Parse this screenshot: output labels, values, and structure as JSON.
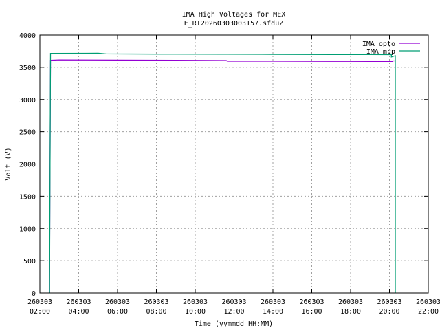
{
  "chart_data": {
    "type": "line",
    "title": "IMA High Voltages for MEX",
    "subtitle": "E_RT20260303003157.sfduZ",
    "xlabel": "Time (yymmdd HH:MM)",
    "ylabel": "Volt (V)",
    "ylim": [
      0,
      4000
    ],
    "xlim_hours": [
      2,
      22
    ],
    "y_ticks": [
      0,
      500,
      1000,
      1500,
      2000,
      2500,
      3000,
      3500,
      4000
    ],
    "x_ticks": [
      {
        "date": "260303",
        "time": "02:00"
      },
      {
        "date": "260303",
        "time": "04:00"
      },
      {
        "date": "260303",
        "time": "06:00"
      },
      {
        "date": "260303",
        "time": "08:00"
      },
      {
        "date": "260303",
        "time": "10:00"
      },
      {
        "date": "260303",
        "time": "12:00"
      },
      {
        "date": "260303",
        "time": "14:00"
      },
      {
        "date": "260303",
        "time": "16:00"
      },
      {
        "date": "260303",
        "time": "18:00"
      },
      {
        "date": "260303",
        "time": "20:00"
      },
      {
        "date": "260303",
        "time": "22:00"
      }
    ],
    "grid": true,
    "legend_position": "top-right",
    "series": [
      {
        "name": "IMA opto",
        "color": "#9400d3",
        "points": [
          [
            2.5,
            0
          ],
          [
            2.5,
            200
          ],
          [
            2.55,
            3610
          ],
          [
            3,
            3615
          ],
          [
            6,
            3612
          ],
          [
            9,
            3610
          ],
          [
            11.6,
            3605
          ],
          [
            11.65,
            3595
          ],
          [
            14,
            3595
          ],
          [
            17,
            3593
          ],
          [
            19,
            3592
          ],
          [
            20.15,
            3592
          ],
          [
            20.2,
            3600
          ],
          [
            20.3,
            3600
          ]
        ]
      },
      {
        "name": "IMA mcp",
        "color": "#009e73",
        "points": [
          [
            2.5,
            0
          ],
          [
            2.55,
            3715
          ],
          [
            5,
            3718
          ],
          [
            5.4,
            3708
          ],
          [
            8,
            3705
          ],
          [
            11.5,
            3703
          ],
          [
            14,
            3700
          ],
          [
            17,
            3698
          ],
          [
            19,
            3697
          ],
          [
            20.1,
            3696
          ],
          [
            20.1,
            3660
          ],
          [
            20.3,
            3680
          ],
          [
            20.3,
            0
          ]
        ]
      }
    ]
  }
}
